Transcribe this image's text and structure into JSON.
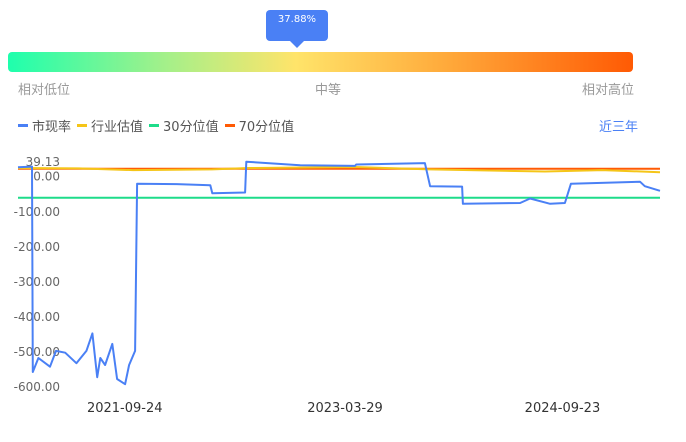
{
  "gauge": {
    "percent_label": "37.88%",
    "percent": 37.88,
    "low_label": "相对低位",
    "mid_label": "中等",
    "high_label": "相对高位"
  },
  "legend": [
    {
      "label": "市现率",
      "color": "#4a80f5"
    },
    {
      "label": "行业估值",
      "color": "#f5c518"
    },
    {
      "label": "30分位值",
      "color": "#1edc8a"
    },
    {
      "label": "70分位值",
      "color": "#ff5a04"
    }
  ],
  "period_label": "近三年",
  "chart_data": {
    "type": "line",
    "x_range": [
      "2020-12-31",
      "2025-05-25"
    ],
    "ylim": [
      -620,
      39.13
    ],
    "y_ticks": [
      "39.13",
      "0.00",
      "-100.00",
      "-200.00",
      "-300.00",
      "-400.00",
      "-500.00",
      "-600.00"
    ],
    "y_tick_values": [
      39.13,
      0,
      -100,
      -200,
      -300,
      -400,
      -500,
      -600
    ],
    "x_ticks": [
      "2021-09-24",
      "2023-03-29",
      "2024-09-23"
    ],
    "grid": false,
    "series": [
      {
        "name": "市现率",
        "color": "#4a80f5",
        "points": [
          [
            "2020-12-31",
            24
          ],
          [
            "2021-02-04",
            26
          ],
          [
            "2021-02-06",
            -560
          ],
          [
            "2021-02-20",
            -520
          ],
          [
            "2021-03-21",
            -545
          ],
          [
            "2021-04-05",
            -500
          ],
          [
            "2021-04-28",
            -505
          ],
          [
            "2021-05-26",
            -535
          ],
          [
            "2021-06-20",
            -500
          ],
          [
            "2021-07-05",
            -450
          ],
          [
            "2021-07-17",
            -575
          ],
          [
            "2021-07-25",
            -520
          ],
          [
            "2021-08-06",
            -540
          ],
          [
            "2021-08-24",
            -480
          ],
          [
            "2021-09-05",
            -580
          ],
          [
            "2021-09-25",
            -595
          ],
          [
            "2021-10-05",
            -540
          ],
          [
            "2021-10-20",
            -500
          ],
          [
            "2021-10-25",
            -23
          ],
          [
            "2022-02-01",
            -24
          ],
          [
            "2022-04-26",
            -27
          ],
          [
            "2022-05-01",
            -50
          ],
          [
            "2022-07-22",
            -48
          ],
          [
            "2022-07-25",
            40
          ],
          [
            "2022-12-07",
            30
          ],
          [
            "2023-04-23",
            28
          ],
          [
            "2023-04-26",
            32
          ],
          [
            "2023-10-15",
            36
          ],
          [
            "2023-10-28",
            -30
          ],
          [
            "2024-01-16",
            -31
          ],
          [
            "2024-01-18",
            -80
          ],
          [
            "2024-06-09",
            -78
          ],
          [
            "2024-07-04",
            -65
          ],
          [
            "2024-08-23",
            -80
          ],
          [
            "2024-09-29",
            -78
          ],
          [
            "2024-10-14",
            -23
          ],
          [
            "2025-04-05",
            -17
          ],
          [
            "2025-04-17",
            -30
          ],
          [
            "2025-05-25",
            -43
          ]
        ]
      },
      {
        "name": "行业估值",
        "color": "#f5c518",
        "points": [
          [
            "2020-12-31",
            22
          ],
          [
            "2021-06-01",
            21
          ],
          [
            "2021-10-15",
            16
          ],
          [
            "2022-05-01",
            18
          ],
          [
            "2022-08-01",
            22
          ],
          [
            "2023-04-23",
            25
          ],
          [
            "2023-10-28",
            18
          ],
          [
            "2024-08-10",
            12
          ],
          [
            "2025-01-01",
            16
          ],
          [
            "2025-05-25",
            10
          ]
        ]
      },
      {
        "name": "30分位值",
        "color": "#1edc8a",
        "points": [
          [
            "2020-12-31",
            -63
          ],
          [
            "2025-05-25",
            -63
          ]
        ]
      },
      {
        "name": "70分位值",
        "color": "#ff5a04",
        "points": [
          [
            "2020-12-31",
            20
          ],
          [
            "2025-05-25",
            20
          ]
        ]
      }
    ]
  }
}
